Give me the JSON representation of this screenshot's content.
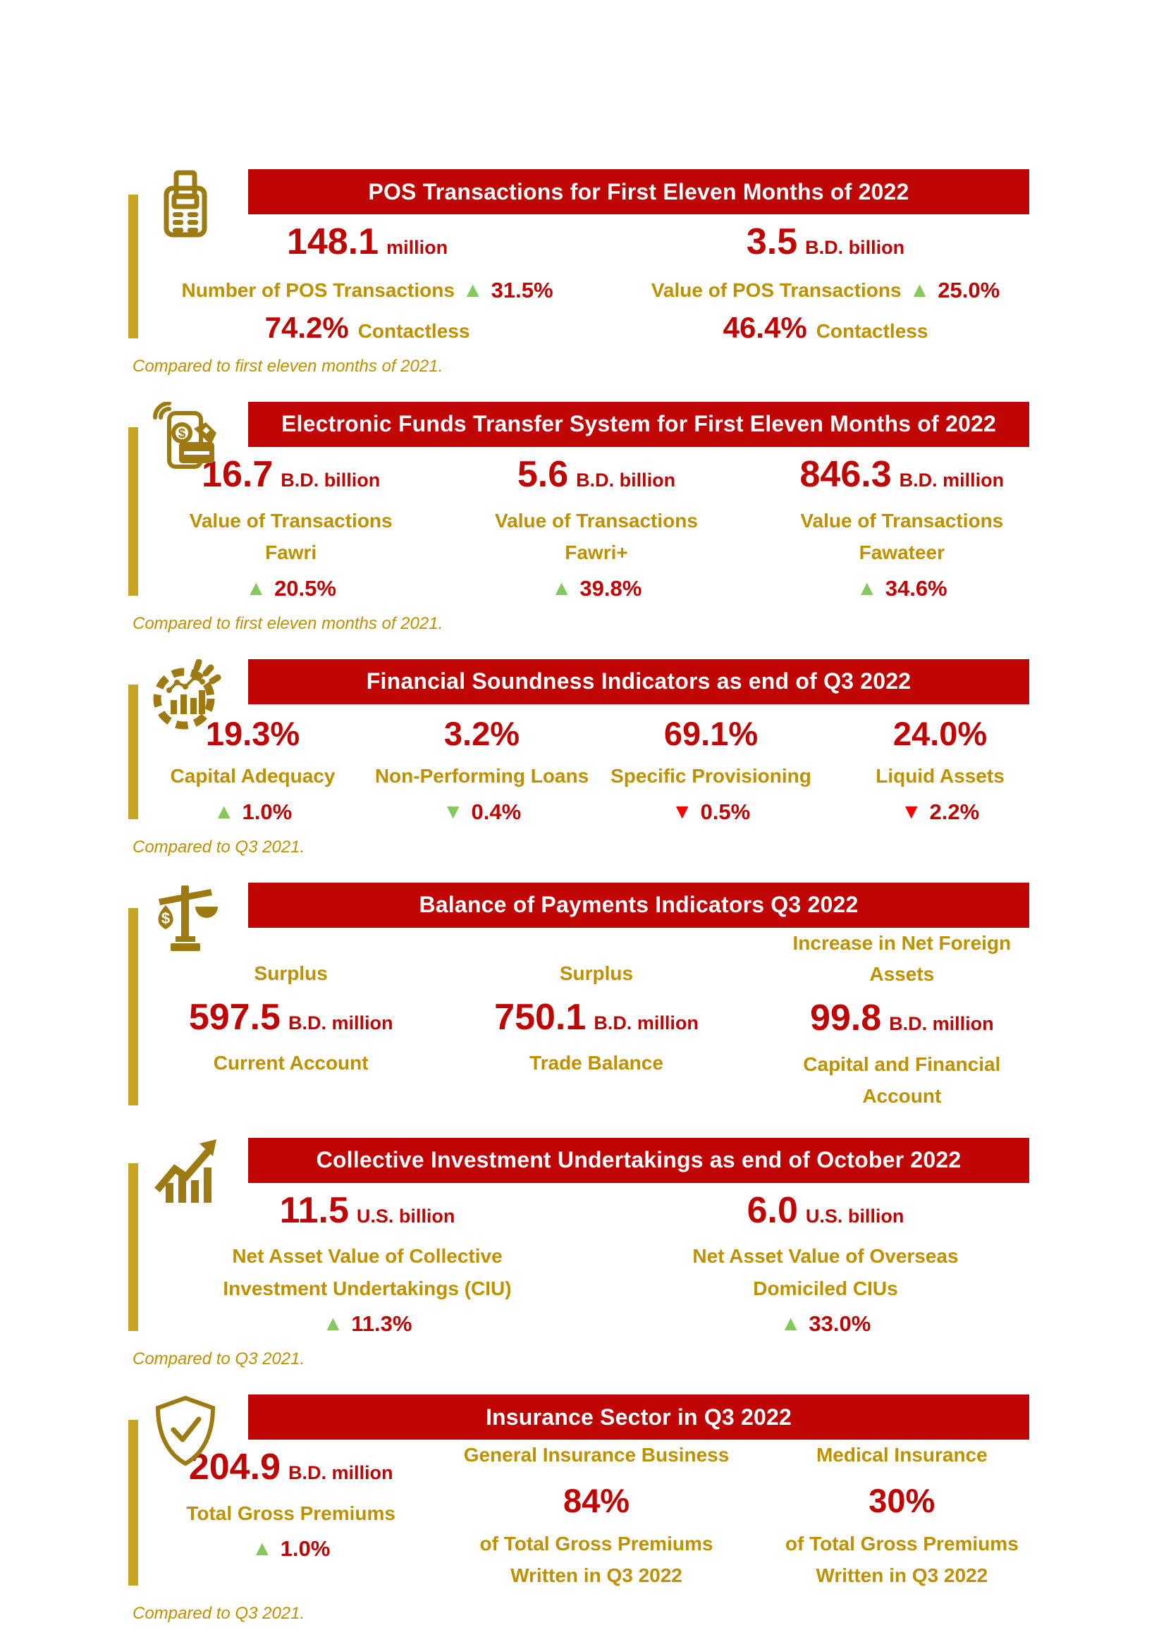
{
  "colors": {
    "banner_red": "#C00505",
    "value_red": "#C00505",
    "gold_text": "#BF9000",
    "gold_icon": "#9D7A12",
    "gold_bar": "#C7A424",
    "green_arrow": "#85C95E",
    "red_arrow": "#FF0000",
    "banner_text": "#FFFFFF"
  },
  "sections": [
    {
      "name": "pos-transactions",
      "icon": "pos-terminal-icon",
      "title": "POS Transactions for First Eleven Months of 2022",
      "footnote": "Compared to first eleven months of 2021.",
      "columns": [
        {
          "value": "148.1",
          "unit": "million",
          "inline_label": "Number of POS Transactions",
          "change": {
            "direction": "up",
            "color": "green",
            "value": "31.5%"
          },
          "extra_value": "74.2%",
          "extra_label": "Contactless"
        },
        {
          "value": "3.5",
          "unit": "B.D. billion",
          "inline_label": "Value of POS Transactions",
          "change": {
            "direction": "up",
            "color": "green",
            "value": "25.0%"
          },
          "extra_value": "46.4%",
          "extra_label": "Contactless"
        }
      ]
    },
    {
      "name": "electronic-funds-transfer",
      "icon": "contactless-payment-icon",
      "title": "Electronic Funds Transfer System for First Eleven Months of 2022",
      "footnote": "Compared to first eleven months of 2021.",
      "columns": [
        {
          "value": "16.7",
          "unit": "B.D. billion",
          "label_lines": [
            "Value of Transactions",
            "Fawri"
          ],
          "change": {
            "direction": "up",
            "color": "green",
            "value": "20.5%"
          }
        },
        {
          "value": "5.6",
          "unit": "B.D. billion",
          "label_lines": [
            "Value of Transactions",
            "Fawri+"
          ],
          "change": {
            "direction": "up",
            "color": "green",
            "value": "39.8%"
          }
        },
        {
          "value": "846.3",
          "unit": "B.D. million",
          "label_lines": [
            "Value of Transactions",
            "Fawateer"
          ],
          "change": {
            "direction": "up",
            "color": "green",
            "value": "34.6%"
          }
        }
      ]
    },
    {
      "name": "financial-soundness-indicators",
      "icon": "financial-chart-icon",
      "title": "Financial Soundness Indicators as end of Q3 2022",
      "footnote": "Compared to Q3 2021.",
      "columns": [
        {
          "big_value": "19.3%",
          "label_lines": [
            "Capital Adequacy"
          ],
          "change": {
            "direction": "up",
            "color": "green",
            "value": "1.0%"
          }
        },
        {
          "big_value": "3.2%",
          "label_lines": [
            "Non-Performing Loans"
          ],
          "change": {
            "direction": "down",
            "color": "green",
            "value": "0.4%"
          }
        },
        {
          "big_value": "69.1%",
          "label_lines": [
            "Specific Provisioning"
          ],
          "change": {
            "direction": "down",
            "color": "red",
            "value": "0.5%"
          }
        },
        {
          "big_value": "24.0%",
          "label_lines": [
            "Liquid Assets"
          ],
          "change": {
            "direction": "down",
            "color": "red",
            "value": "2.2%"
          }
        }
      ]
    },
    {
      "name": "balance-of-payments",
      "icon": "balance-scale-icon",
      "title": "Balance of Payments Indicators Q3 2022",
      "footnote": null,
      "top_label_bottom_align": true,
      "columns": [
        {
          "top_label_lines": [
            "Surplus"
          ],
          "value": "597.5",
          "unit": "B.D. million",
          "label_lines": [
            "Current Account"
          ]
        },
        {
          "top_label_lines": [
            "Surplus"
          ],
          "value": "750.1",
          "unit": "B.D. million",
          "label_lines": [
            "Trade Balance"
          ]
        },
        {
          "top_label_lines": [
            "Increase in Net Foreign",
            "Assets"
          ],
          "value": "99.8",
          "unit": "B.D. million",
          "label_lines": [
            "Capital and Financial",
            "Account"
          ]
        }
      ]
    },
    {
      "name": "collective-investment-undertakings",
      "icon": "growth-chart-icon",
      "title": "Collective Investment Undertakings as end of October 2022",
      "footnote": "Compared to Q3 2021.",
      "columns": [
        {
          "value": "11.5",
          "unit": "U.S. billion",
          "label_lines": [
            "Net Asset Value of Collective",
            "Investment Undertakings (CIU)"
          ],
          "change": {
            "direction": "up",
            "color": "green",
            "value": "11.3%"
          }
        },
        {
          "value": "6.0",
          "unit": "U.S. billion",
          "label_lines": [
            "Net Asset Value of Overseas",
            "Domiciled CIUs"
          ],
          "change": {
            "direction": "up",
            "color": "green",
            "value": "33.0%"
          }
        }
      ]
    },
    {
      "name": "insurance-sector",
      "icon": "shield-check-icon",
      "title": "Insurance Sector in Q3 2022",
      "footnote": "Compared to Q3 2021.",
      "columns": [
        {
          "value": "204.9",
          "unit": "B.D. million",
          "label_lines": [
            "Total Gross Premiums"
          ],
          "change": {
            "direction": "up",
            "color": "green",
            "value": "1.0%"
          }
        },
        {
          "top_label_lines": [
            "General Insurance Business"
          ],
          "big_value": "84%",
          "label_lines": [
            "of Total Gross Premiums",
            "Written in Q3 2022"
          ]
        },
        {
          "top_label_lines": [
            "Medical Insurance"
          ],
          "big_value": "30%",
          "label_lines": [
            "of Total Gross Premiums",
            "Written in Q3 2022"
          ]
        }
      ]
    }
  ]
}
